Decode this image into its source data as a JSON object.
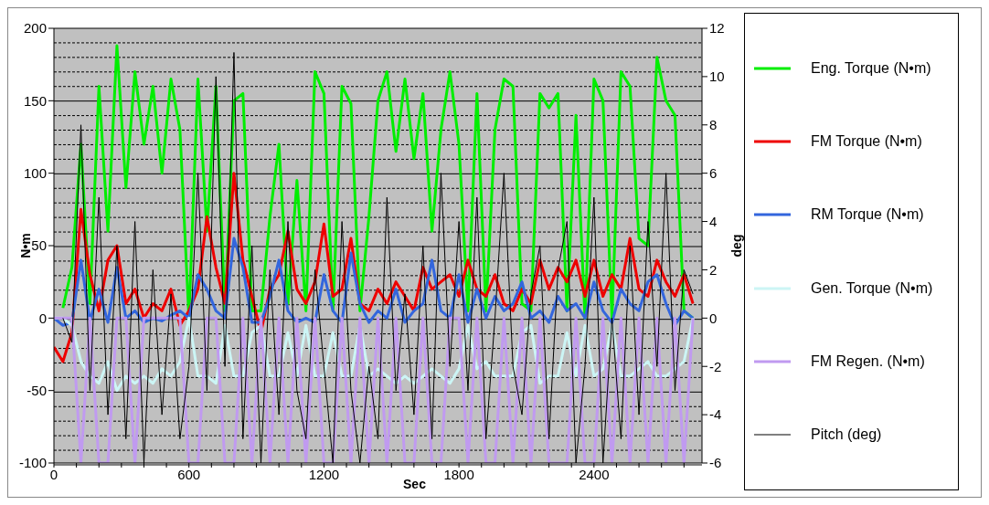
{
  "chart_data": {
    "type": "line",
    "xlabel": "Sec",
    "ylabel": "N•m",
    "y2label": "deg",
    "x": [
      0,
      40,
      80,
      120,
      160,
      200,
      240,
      280,
      320,
      360,
      400,
      440,
      480,
      520,
      560,
      600,
      640,
      680,
      720,
      760,
      800,
      840,
      880,
      920,
      960,
      1000,
      1040,
      1080,
      1120,
      1160,
      1200,
      1240,
      1280,
      1320,
      1360,
      1400,
      1440,
      1480,
      1520,
      1560,
      1600,
      1640,
      1680,
      1720,
      1760,
      1800,
      1840,
      1880,
      1920,
      1960,
      2000,
      2040,
      2080,
      2120,
      2160,
      2200,
      2240,
      2280,
      2320,
      2360,
      2400,
      2440,
      2480,
      2520,
      2560,
      2600,
      2640,
      2680,
      2720,
      2760,
      2800,
      2840
    ],
    "series": [
      {
        "name": "Eng. Torque (N•m)",
        "color": "#00ee00",
        "values": [
          null,
          7,
          35,
          120,
          10,
          160,
          60,
          188,
          90,
          170,
          120,
          160,
          100,
          165,
          130,
          0,
          165,
          60,
          160,
          5,
          150,
          155,
          5,
          5,
          70,
          120,
          10,
          95,
          5,
          170,
          155,
          5,
          160,
          148,
          5,
          70,
          150,
          170,
          115,
          165,
          110,
          155,
          60,
          130,
          170,
          120,
          5,
          155,
          5,
          130,
          165,
          160,
          10,
          5,
          155,
          145,
          155,
          5,
          140,
          0,
          165,
          150,
          0,
          170,
          160,
          55,
          50,
          180,
          150,
          140,
          5,
          0
        ]
      },
      {
        "name": "FM Torque (N•m)",
        "color": "#ee0000",
        "values": [
          -20,
          -30,
          -10,
          75,
          30,
          5,
          40,
          50,
          10,
          20,
          0,
          10,
          5,
          20,
          -5,
          5,
          20,
          70,
          35,
          10,
          100,
          40,
          15,
          -10,
          20,
          30,
          60,
          20,
          10,
          25,
          65,
          15,
          20,
          55,
          10,
          5,
          20,
          10,
          25,
          15,
          5,
          35,
          20,
          25,
          30,
          15,
          40,
          20,
          15,
          30,
          10,
          5,
          20,
          10,
          40,
          20,
          35,
          25,
          40,
          15,
          40,
          15,
          30,
          20,
          55,
          20,
          15,
          40,
          25,
          15,
          30,
          10
        ]
      },
      {
        "name": "RM Torque (N•m)",
        "color": "#3366dd",
        "values": [
          0,
          -5,
          -3,
          40,
          -2,
          20,
          -3,
          35,
          0,
          5,
          -3,
          0,
          -2,
          2,
          5,
          0,
          30,
          20,
          5,
          0,
          55,
          35,
          -3,
          -3,
          15,
          40,
          5,
          -3,
          0,
          -3,
          30,
          5,
          -3,
          45,
          10,
          -3,
          5,
          0,
          20,
          -3,
          5,
          10,
          40,
          5,
          0,
          30,
          -3,
          20,
          0,
          15,
          5,
          10,
          25,
          0,
          5,
          -3,
          15,
          5,
          10,
          0,
          25,
          5,
          -3,
          20,
          10,
          5,
          25,
          30,
          10,
          -5,
          5,
          0
        ]
      },
      {
        "name": "Gen. Torque (N•m)",
        "color": "#ccf5f5",
        "values": [
          0,
          0,
          -5,
          -30,
          -40,
          -45,
          -30,
          -50,
          -40,
          -45,
          -40,
          -45,
          -35,
          -40,
          -30,
          0,
          -40,
          -40,
          -45,
          -5,
          -40,
          -40,
          -10,
          -5,
          -40,
          -40,
          -10,
          -40,
          -5,
          -40,
          -40,
          -10,
          -40,
          -40,
          -5,
          -40,
          -35,
          -40,
          -45,
          -40,
          -45,
          -40,
          -35,
          -40,
          -45,
          -35,
          -5,
          -35,
          -30,
          -40,
          -40,
          -40,
          -10,
          -5,
          -45,
          -40,
          -40,
          -10,
          -40,
          -5,
          -40,
          -35,
          -5,
          -40,
          -40,
          -35,
          -30,
          -40,
          -40,
          -35,
          -30,
          0
        ]
      },
      {
        "name": "FM Regen. (N•m)",
        "color": "#c09af0",
        "values": [
          0,
          0,
          0,
          -100,
          0,
          -100,
          -100,
          0,
          0,
          -100,
          0,
          0,
          0,
          0,
          0,
          -100,
          -100,
          0,
          0,
          -100,
          -100,
          0,
          -100,
          0,
          -100,
          0,
          -100,
          0,
          -100,
          0,
          -100,
          -100,
          0,
          -100,
          0,
          -100,
          0,
          -100,
          0,
          -100,
          -100,
          0,
          -100,
          -100,
          0,
          0,
          -100,
          0,
          -100,
          -100,
          0,
          -100,
          0,
          -100,
          0,
          -100,
          -100,
          -100,
          0,
          -100,
          -100,
          0,
          -100,
          0,
          -100,
          0,
          -100,
          0,
          -100,
          0,
          -100,
          0
        ]
      },
      {
        "name": "Pitch (deg)",
        "color": "#000000",
        "axis": "y2",
        "values": [
          null,
          0,
          -1,
          8,
          -3,
          5,
          -4,
          3,
          -5,
          4,
          -6,
          2,
          -4,
          1,
          -5,
          -2,
          6,
          -3,
          10,
          -2,
          11,
          -5,
          3,
          -6,
          2,
          -4,
          4,
          -3,
          -5,
          2,
          -2,
          -6,
          4,
          -3,
          -6,
          -2,
          -5,
          5,
          -3,
          1,
          -4,
          3,
          -5,
          6,
          -2,
          4,
          -3,
          5,
          -5,
          0,
          6,
          -2,
          -4,
          1,
          3,
          -5,
          2,
          4,
          -6,
          -2,
          5,
          -6,
          0,
          -5,
          3,
          -4,
          4,
          -2,
          6,
          -3,
          2,
          1
        ]
      }
    ],
    "xlim": [
      0,
      2880
    ],
    "xticks": [
      0,
      {
        "value": 100,
        "label": null
      },
      {
        "value": 200,
        "label": null
      },
      {
        "value": 300,
        "label": null
      },
      {
        "value": 400,
        "label": null
      },
      {
        "value": 500,
        "label": null
      },
      600,
      {
        "value": 700,
        "label": null
      },
      {
        "value": 800,
        "label": null
      },
      {
        "value": 900,
        "label": null
      },
      {
        "value": 1000,
        "label": null
      },
      {
        "value": 1100,
        "label": null
      },
      1200,
      {
        "value": 1300,
        "label": null
      },
      {
        "value": 1400,
        "label": null
      },
      {
        "value": 1500,
        "label": null
      },
      {
        "value": 1600,
        "label": null
      },
      {
        "value": 1700,
        "label": null
      },
      1800,
      {
        "value": 1900,
        "label": null
      },
      {
        "value": 2000,
        "label": null
      },
      {
        "value": 2100,
        "label": null
      },
      {
        "value": 2200,
        "label": null
      },
      {
        "value": 2300,
        "label": null
      },
      2400,
      {
        "value": 2500,
        "label": null
      },
      {
        "value": 2600,
        "label": null
      },
      {
        "value": 2700,
        "label": null
      },
      {
        "value": 2800,
        "label": null
      }
    ],
    "ylim": [
      -100,
      200
    ],
    "yticks": [
      -100,
      -50,
      0,
      50,
      100,
      150,
      200
    ],
    "y2lim": [
      -6,
      12
    ],
    "y2ticks": [
      -6,
      -4,
      -2,
      0,
      2,
      4,
      6,
      8,
      10,
      12
    ],
    "grid": "y",
    "legend": "right",
    "marker": "none",
    "line_style": "solid"
  }
}
